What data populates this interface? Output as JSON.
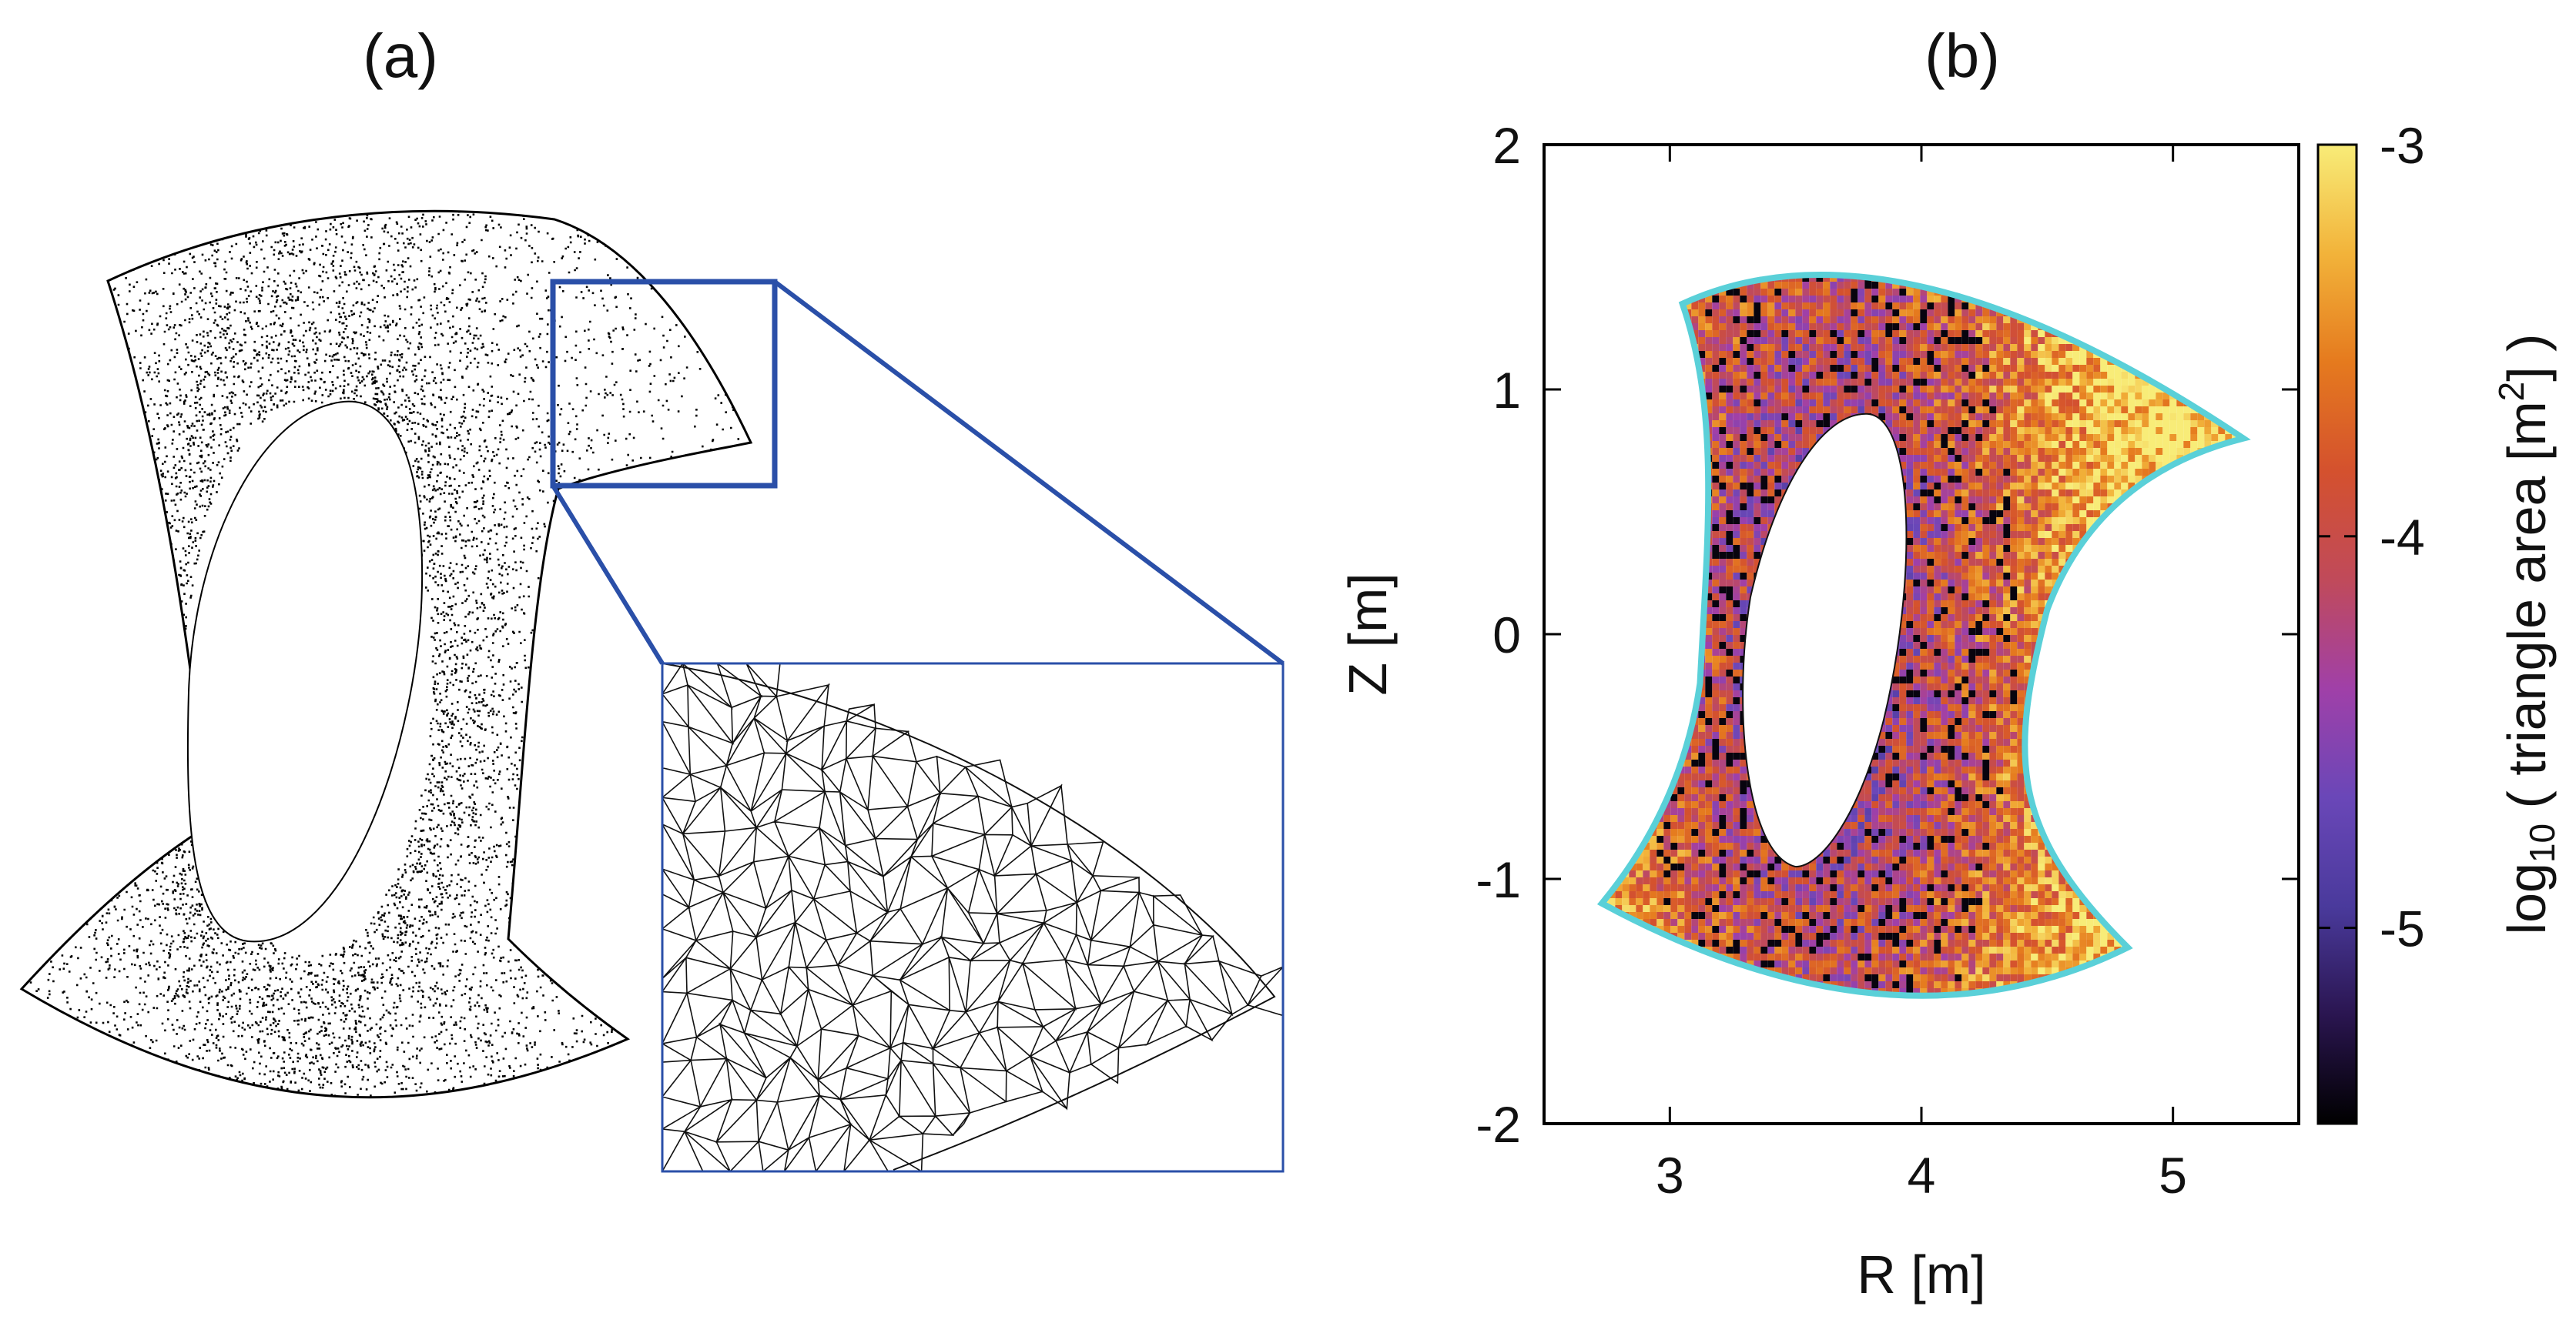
{
  "panels": {
    "a_label": "(a)",
    "b_label": "(b)"
  },
  "chart_data": [
    {
      "type": "scatter",
      "panel": "(a)",
      "content": "point cloud of mesh nodes with magnified inset of triangular mesh",
      "point_color": "#000000",
      "inset_frame_color": "#2a4fa8"
    },
    {
      "type": "heatmap",
      "panel": "(b)",
      "xlabel": "R [m]",
      "ylabel": "Z [m]",
      "xlim": [
        2.5,
        5.5
      ],
      "ylim": [
        -2,
        2
      ],
      "xticks": [
        3,
        4,
        5
      ],
      "yticks": [
        -2,
        -1,
        0,
        1,
        2
      ],
      "colorbar": {
        "label_prefix": "log",
        "label_sub": "10",
        "label_main": " ( triangle area [m",
        "label_sup": "2",
        "label_end": "] )",
        "range": [
          -5.5,
          -3
        ],
        "ticks": [
          -3,
          -4,
          -5
        ],
        "colormap": [
          "#000000",
          "#2a1550",
          "#4a3a9c",
          "#6a47b8",
          "#a040a8",
          "#c04a5a",
          "#d4512e",
          "#e57a1e",
          "#f2b33a",
          "#f8ec78"
        ]
      },
      "outline_color": "#5ad0d8"
    }
  ]
}
